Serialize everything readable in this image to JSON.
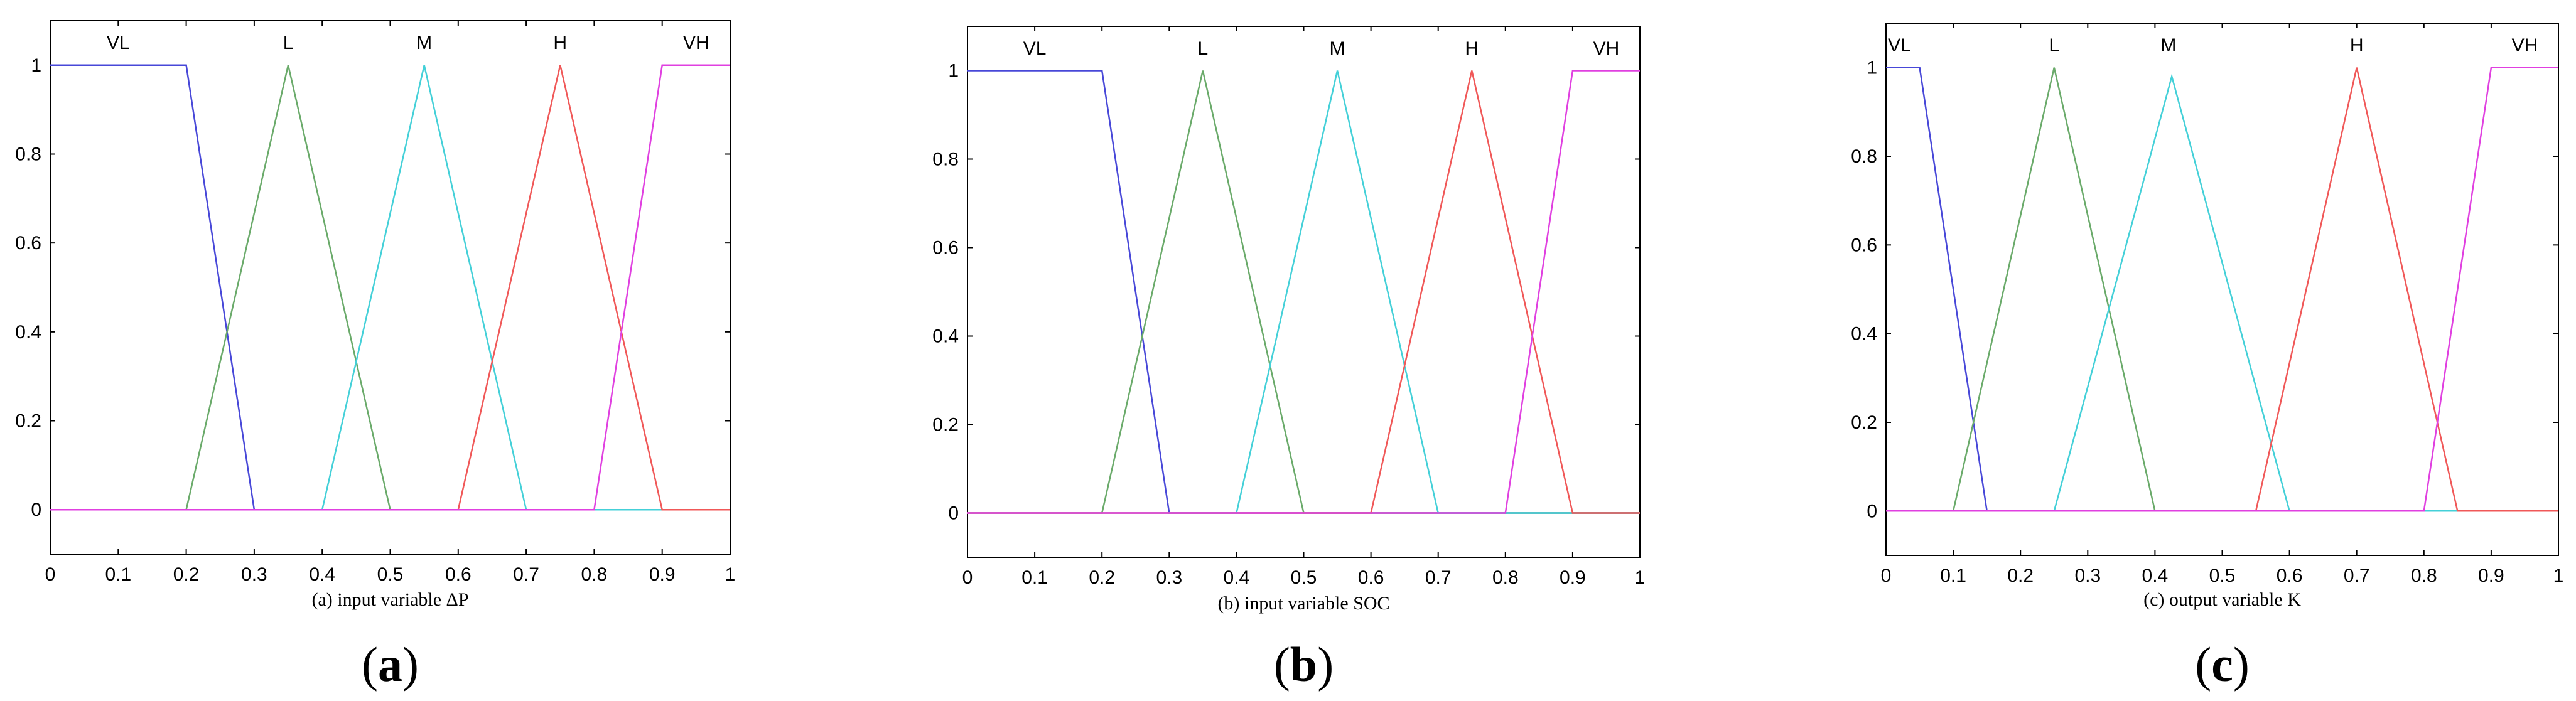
{
  "colors": {
    "VL": "#4848d8",
    "L": "#6aaa6a",
    "M": "#44d0d8",
    "H": "#f05858",
    "VH": "#e040e0"
  },
  "chart_data": [
    {
      "type": "line",
      "xlabel": "(a) input variable ΔP",
      "panel_label": "a",
      "xlim": [
        0,
        1
      ],
      "ylim": [
        -0.1,
        1.1
      ],
      "xticks": [
        "0",
        "0.1",
        "0.2",
        "0.3",
        "0.4",
        "0.5",
        "0.6",
        "0.7",
        "0.8",
        "0.9",
        "1"
      ],
      "yticks": [
        "0",
        "0.2",
        "0.4",
        "0.6",
        "0.8",
        "1"
      ],
      "grid": false,
      "series": [
        {
          "name": "VL",
          "x": [
            0,
            0.2,
            0.3,
            1
          ],
          "y": [
            1,
            1,
            0,
            0
          ]
        },
        {
          "name": "L",
          "x": [
            0,
            0.2,
            0.35,
            0.5,
            1
          ],
          "y": [
            0,
            0,
            1,
            0,
            0
          ]
        },
        {
          "name": "M",
          "x": [
            0,
            0.4,
            0.55,
            0.7,
            1
          ],
          "y": [
            0,
            0,
            1,
            0,
            0
          ]
        },
        {
          "name": "H",
          "x": [
            0,
            0.6,
            0.75,
            0.9,
            1
          ],
          "y": [
            0,
            0,
            1,
            0,
            0
          ]
        },
        {
          "name": "VH",
          "x": [
            0,
            0.8,
            0.9,
            1
          ],
          "y": [
            0,
            0,
            1,
            1
          ]
        }
      ],
      "mf_labels": [
        {
          "text": "VL",
          "x": 0.1
        },
        {
          "text": "L",
          "x": 0.35
        },
        {
          "text": "M",
          "x": 0.55
        },
        {
          "text": "H",
          "x": 0.75
        },
        {
          "text": "VH",
          "x": 0.95
        }
      ]
    },
    {
      "type": "line",
      "xlabel": "(b) input variable SOC",
      "panel_label": "b",
      "xlim": [
        0,
        1
      ],
      "ylim": [
        -0.1,
        1.1
      ],
      "xticks": [
        "0",
        "0.1",
        "0.2",
        "0.3",
        "0.4",
        "0.5",
        "0.6",
        "0.7",
        "0.8",
        "0.9",
        "1"
      ],
      "yticks": [
        "0",
        "0.2",
        "0.4",
        "0.6",
        "0.8",
        "1"
      ],
      "grid": false,
      "series": [
        {
          "name": "VL",
          "x": [
            0,
            0.2,
            0.3,
            1
          ],
          "y": [
            1,
            1,
            0,
            0
          ]
        },
        {
          "name": "L",
          "x": [
            0,
            0.2,
            0.35,
            0.5,
            1
          ],
          "y": [
            0,
            0,
            1,
            0,
            0
          ]
        },
        {
          "name": "M",
          "x": [
            0,
            0.4,
            0.55,
            0.7,
            1
          ],
          "y": [
            0,
            0,
            1,
            0,
            0
          ]
        },
        {
          "name": "H",
          "x": [
            0,
            0.6,
            0.75,
            0.9,
            1
          ],
          "y": [
            0,
            0,
            1,
            0,
            0
          ]
        },
        {
          "name": "VH",
          "x": [
            0,
            0.8,
            0.9,
            1
          ],
          "y": [
            0,
            0,
            1,
            1
          ]
        }
      ],
      "mf_labels": [
        {
          "text": "VL",
          "x": 0.1
        },
        {
          "text": "L",
          "x": 0.35
        },
        {
          "text": "M",
          "x": 0.55
        },
        {
          "text": "H",
          "x": 0.75
        },
        {
          "text": "VH",
          "x": 0.95
        }
      ]
    },
    {
      "type": "line",
      "xlabel": "(c) output variable K",
      "panel_label": "c",
      "xlim": [
        0,
        1
      ],
      "ylim": [
        -0.1,
        1.1
      ],
      "xticks": [
        "0",
        "0.1",
        "0.2",
        "0.3",
        "0.4",
        "0.5",
        "0.6",
        "0.7",
        "0.8",
        "0.9",
        "1"
      ],
      "yticks": [
        "0",
        "0.2",
        "0.4",
        "0.6",
        "0.8",
        "1"
      ],
      "grid": false,
      "series": [
        {
          "name": "VL",
          "x": [
            0,
            0.05,
            0.15,
            1
          ],
          "y": [
            1,
            1,
            0,
            0
          ]
        },
        {
          "name": "L",
          "x": [
            0,
            0.1,
            0.25,
            0.4,
            1
          ],
          "y": [
            0,
            0,
            1,
            0,
            0
          ]
        },
        {
          "name": "M",
          "x": [
            0,
            0.25,
            0.425,
            0.6,
            1
          ],
          "y": [
            0,
            0,
            0.98,
            0,
            0
          ]
        },
        {
          "name": "H",
          "x": [
            0,
            0.55,
            0.7,
            0.85,
            1
          ],
          "y": [
            0,
            0,
            1,
            0,
            0
          ]
        },
        {
          "name": "VH",
          "x": [
            0,
            0.8,
            0.9,
            1
          ],
          "y": [
            0,
            0,
            1,
            1
          ]
        }
      ],
      "mf_labels": [
        {
          "text": "VL",
          "x": 0.02
        },
        {
          "text": "L",
          "x": 0.25
        },
        {
          "text": "M",
          "x": 0.42
        },
        {
          "text": "H",
          "x": 0.7
        },
        {
          "text": "VH",
          "x": 0.95
        }
      ]
    }
  ]
}
